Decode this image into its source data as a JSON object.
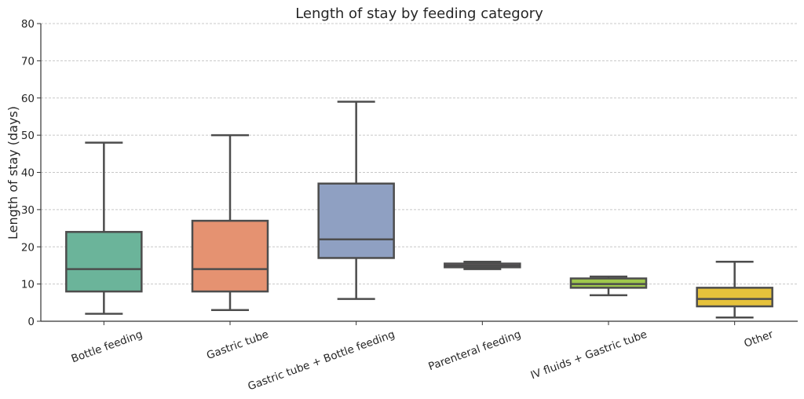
{
  "chart_data": {
    "type": "box",
    "title": "Length of stay by feeding category",
    "xlabel": "",
    "ylabel": "Length of stay (days)",
    "ylim": [
      0,
      80
    ],
    "yticks": [
      0,
      10,
      20,
      30,
      40,
      50,
      60,
      70,
      80
    ],
    "grid": "horizontal dashed",
    "categories": [
      "Bottle feeding",
      "Gastric tube",
      "Gastric tube + Bottle feeding",
      "Parenteral feeding",
      "IV fluids + Gastric tube",
      "Other"
    ],
    "boxes": [
      {
        "name": "Bottle feeding",
        "whisker_low": 2,
        "q1": 8,
        "median": 14,
        "q3": 24,
        "whisker_high": 48,
        "color": "#6bb49a"
      },
      {
        "name": "Gastric tube",
        "whisker_low": 3,
        "q1": 8,
        "median": 14,
        "q3": 27,
        "whisker_high": 50,
        "color": "#e59271"
      },
      {
        "name": "Gastric tube + Bottle feeding",
        "whisker_low": 6,
        "q1": 17,
        "median": 22,
        "q3": 37,
        "whisker_high": 59,
        "color": "#8fa0c2"
      },
      {
        "name": "Parenteral feeding",
        "whisker_low": 14,
        "q1": 14.5,
        "median": 15,
        "q3": 15.5,
        "whisker_high": 16,
        "color": "#c98cbc"
      },
      {
        "name": "IV fluids + Gastric tube",
        "whisker_low": 7,
        "q1": 9,
        "median": 10,
        "q3": 11.5,
        "whisker_high": 12,
        "color": "#9fc84d"
      },
      {
        "name": "Other",
        "whisker_low": 1,
        "q1": 4,
        "median": 6,
        "q3": 9,
        "whisker_high": 16,
        "color": "#e6c23b"
      }
    ]
  }
}
